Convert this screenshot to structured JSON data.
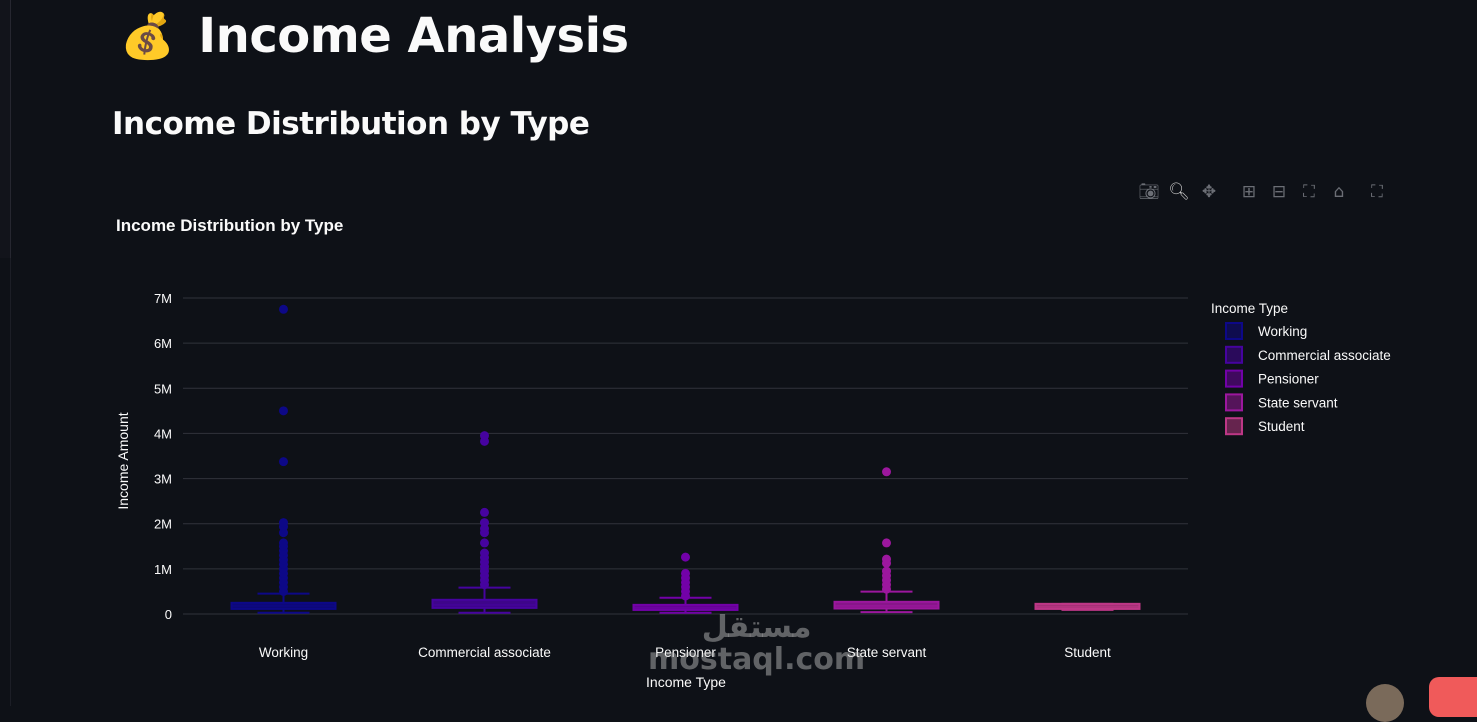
{
  "page": {
    "title": "Income Analysis",
    "title_icon": "money-bag-icon",
    "section_heading": "Income Distribution by Type"
  },
  "modebar": [
    "camera-icon",
    "zoom-icon",
    "pan-icon",
    "zoom-in-icon",
    "zoom-out-icon",
    "autoscale-icon",
    "home-icon",
    "fullscreen-icon"
  ],
  "watermark": {
    "line1": "مستقل",
    "line2": "mostaql.com"
  },
  "chart_data": {
    "type": "box",
    "title": "Income Distribution by Type",
    "xlabel": "Income Type",
    "ylabel": "Income Amount",
    "ylim": [
      0,
      7000000
    ],
    "yticks": [
      0,
      1000000,
      2000000,
      3000000,
      4000000,
      5000000,
      6000000,
      7000000
    ],
    "ytick_labels": [
      "0",
      "1M",
      "2M",
      "3M",
      "4M",
      "5M",
      "6M",
      "7M"
    ],
    "categories": [
      "Working",
      "Commercial associate",
      "Pensioner",
      "State servant",
      "Student"
    ],
    "grid": true,
    "legend": {
      "title": "Income Type",
      "placement": "right"
    },
    "series": [
      {
        "name": "Working",
        "color": "#0d0887",
        "min": 27000,
        "q1": 112500,
        "median": 180000,
        "q3": 247500,
        "max": 450000,
        "outliers": [
          500000,
          600000,
          700000,
          800000,
          900000,
          1000000,
          1100000,
          1200000,
          1300000,
          1400000,
          1500000,
          1575000,
          1800000,
          1935000,
          2025000,
          3375000,
          4500000,
          6750000
        ]
      },
      {
        "name": "Commercial associate",
        "color": "#46039f",
        "min": 27000,
        "q1": 135000,
        "median": 202500,
        "q3": 315000,
        "max": 585000,
        "outliers": [
          650000,
          750000,
          850000,
          950000,
          1050000,
          1150000,
          1250000,
          1350000,
          1575000,
          1800000,
          1890000,
          2025000,
          2250000,
          3825000,
          3950000
        ]
      },
      {
        "name": "Pensioner",
        "color": "#7201a8",
        "min": 27000,
        "q1": 90000,
        "median": 135000,
        "q3": 202500,
        "max": 360000,
        "outliers": [
          400000,
          500000,
          600000,
          700000,
          800000,
          900000,
          1260000
        ]
      },
      {
        "name": "State servant",
        "color": "#9c179e",
        "min": 40500,
        "q1": 121500,
        "median": 180000,
        "q3": 270000,
        "max": 495000,
        "outliers": [
          550000,
          650000,
          750000,
          850000,
          950000,
          1125000,
          1215000,
          1575000,
          3150000
        ]
      },
      {
        "name": "Student",
        "color": "#bd3786",
        "min": 90000,
        "q1": 112500,
        "median": 157500,
        "q3": 225000,
        "max": 225000,
        "outliers": []
      }
    ]
  }
}
